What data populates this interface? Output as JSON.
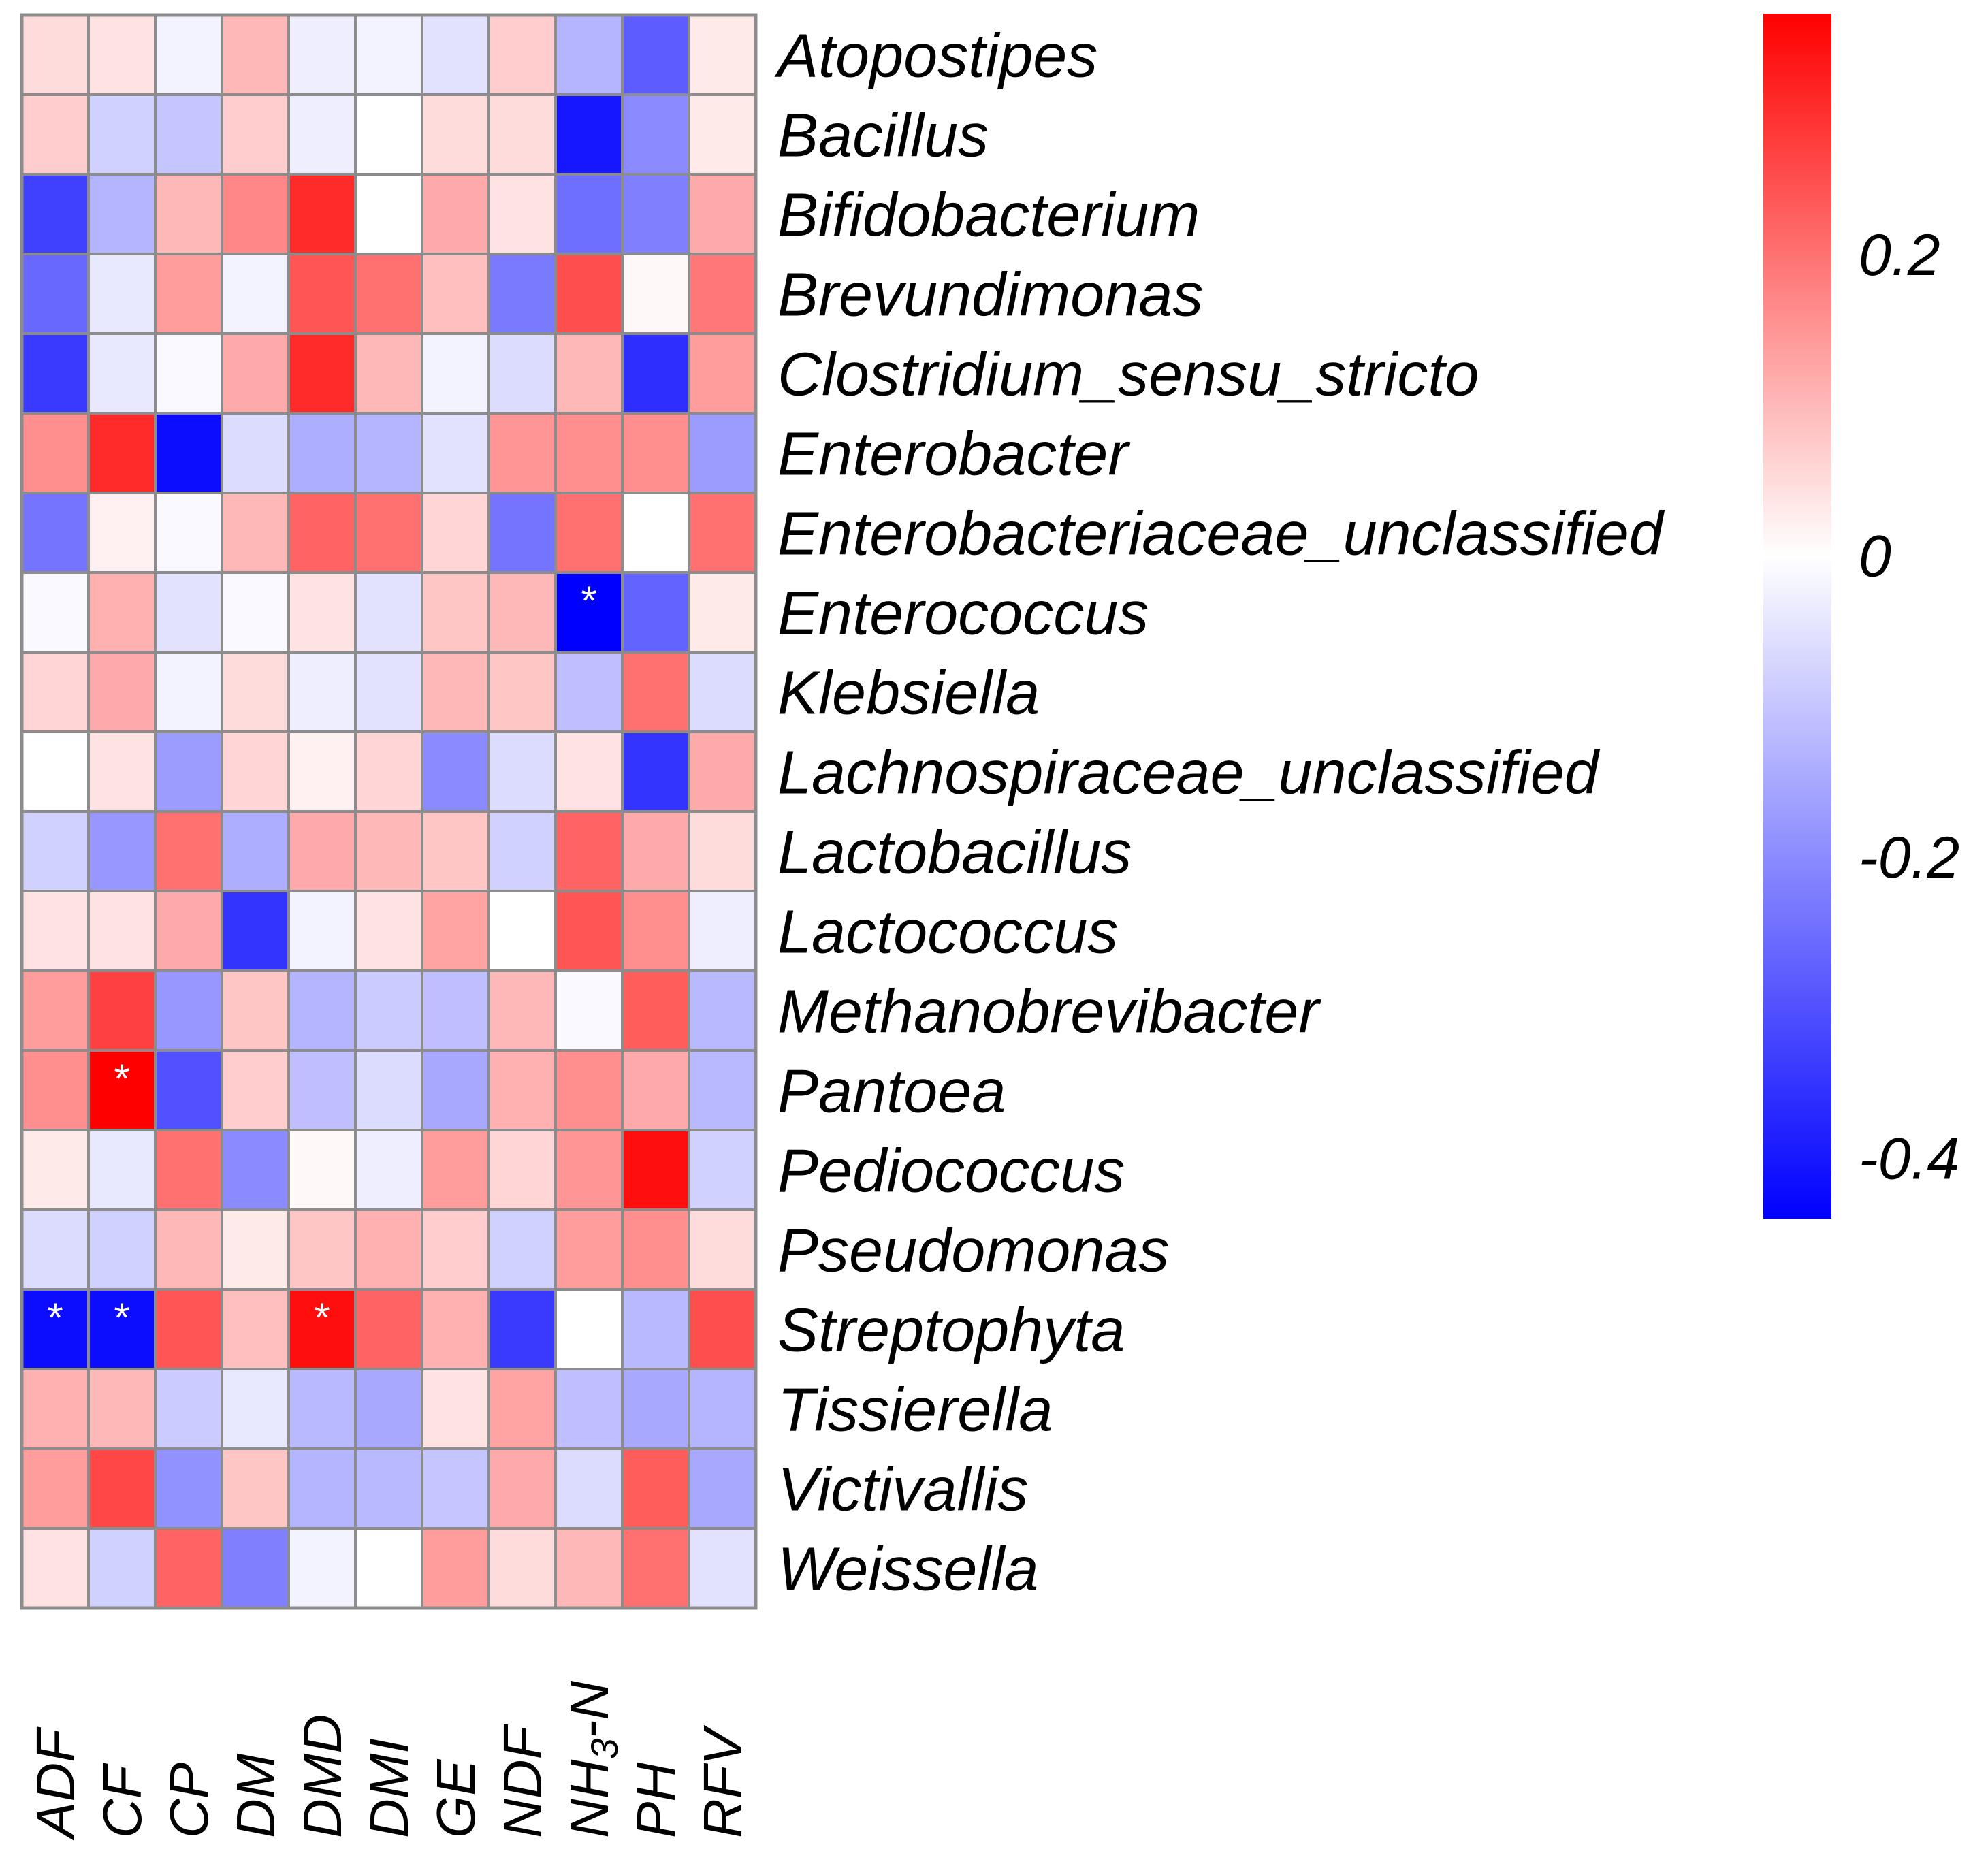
{
  "chart_data": {
    "type": "heatmap",
    "title": "",
    "rows": [
      "Atopostipes",
      "Bacillus",
      "Bifidobacterium",
      "Brevundimonas",
      "Clostridium_sensu_stricto",
      "Enterobacter",
      "Enterobacteriaceae_unclassified",
      "Enterococcus",
      "Klebsiella",
      "Lachnospiraceae_unclassified",
      "Lactobacillus",
      "Lactococcus",
      "Methanobrevibacter",
      "Pantoea",
      "Pediococcus",
      "Pseudomonas",
      "Streptophyta",
      "Tissierella",
      "Victivallis",
      "Weissella"
    ],
    "columns": [
      "ADF",
      "CF",
      "CP",
      "DM",
      "DMD",
      "DMI",
      "GE",
      "NDF",
      "NH3-N",
      "PH",
      "RFV"
    ],
    "column_label_parts": {
      "NH3-N": [
        "NH",
        "3",
        "-N"
      ]
    },
    "values": [
      [
        0.05,
        0.04,
        -0.02,
        0.1,
        -0.03,
        -0.02,
        -0.05,
        0.07,
        -0.13,
        -0.28,
        0.03
      ],
      [
        0.07,
        -0.08,
        -0.1,
        0.07,
        -0.03,
        0.0,
        0.05,
        0.05,
        -0.4,
        -0.2,
        0.03
      ],
      [
        -0.33,
        -0.13,
        0.1,
        0.17,
        0.3,
        0.0,
        0.12,
        0.04,
        -0.25,
        -0.22,
        0.12
      ],
      [
        -0.26,
        -0.04,
        0.14,
        -0.02,
        0.24,
        0.2,
        0.09,
        -0.23,
        0.25,
        0.01,
        0.19
      ],
      [
        -0.34,
        -0.04,
        -0.01,
        0.12,
        0.3,
        0.1,
        -0.02,
        -0.06,
        0.1,
        -0.36,
        0.14
      ],
      [
        0.16,
        0.3,
        -0.42,
        -0.06,
        -0.14,
        -0.13,
        -0.05,
        0.15,
        0.16,
        0.16,
        -0.17
      ],
      [
        -0.24,
        0.02,
        -0.01,
        0.1,
        0.22,
        0.2,
        0.06,
        -0.24,
        0.2,
        0.0,
        0.2
      ],
      [
        -0.01,
        0.11,
        -0.05,
        -0.01,
        0.04,
        -0.05,
        0.08,
        0.1,
        -0.44,
        -0.27,
        0.03
      ],
      [
        0.06,
        0.12,
        -0.02,
        0.05,
        -0.03,
        -0.05,
        0.1,
        0.08,
        -0.11,
        0.2,
        -0.06
      ],
      [
        0.0,
        0.04,
        -0.17,
        0.06,
        0.02,
        0.06,
        -0.2,
        -0.06,
        0.04,
        -0.35,
        0.12
      ],
      [
        -0.08,
        -0.18,
        0.2,
        -0.14,
        0.12,
        0.1,
        0.08,
        -0.08,
        0.22,
        0.12,
        0.05
      ],
      [
        0.04,
        0.04,
        0.12,
        -0.35,
        -0.02,
        0.04,
        0.13,
        0.0,
        0.24,
        0.16,
        -0.03
      ],
      [
        0.14,
        0.27,
        -0.18,
        0.08,
        -0.13,
        -0.09,
        -0.11,
        0.1,
        -0.01,
        0.23,
        -0.12
      ],
      [
        0.16,
        0.36,
        -0.3,
        0.07,
        -0.11,
        -0.06,
        -0.15,
        0.11,
        0.16,
        0.12,
        -0.12
      ],
      [
        0.03,
        -0.04,
        0.2,
        -0.2,
        0.01,
        -0.03,
        0.14,
        0.06,
        0.15,
        0.34,
        -0.08
      ],
      [
        -0.06,
        -0.08,
        0.1,
        0.03,
        0.08,
        0.11,
        0.07,
        -0.08,
        0.14,
        0.16,
        0.05
      ],
      [
        -0.42,
        -0.42,
        0.24,
        0.09,
        0.34,
        0.22,
        0.11,
        -0.34,
        0.0,
        -0.12,
        0.25
      ],
      [
        0.11,
        0.1,
        -0.09,
        -0.04,
        -0.12,
        -0.15,
        0.04,
        0.13,
        -0.11,
        -0.15,
        -0.13
      ],
      [
        0.14,
        0.26,
        -0.19,
        0.08,
        -0.13,
        -0.12,
        -0.1,
        0.12,
        -0.06,
        0.23,
        -0.15
      ],
      [
        0.04,
        -0.08,
        0.22,
        -0.22,
        -0.02,
        0.0,
        0.14,
        0.05,
        0.1,
        0.2,
        -0.05
      ]
    ],
    "significant": [
      [
        7,
        8
      ],
      [
        13,
        1
      ],
      [
        16,
        0
      ],
      [
        16,
        1
      ],
      [
        16,
        4
      ]
    ],
    "marker_symbol": "*",
    "colorbar": {
      "ticks": [
        0.2,
        0,
        -0.2,
        -0.4
      ],
      "tick_labels": [
        "0.2",
        "0",
        "-0.2",
        "-0.4"
      ],
      "vmin": -0.44,
      "vmax": 0.36,
      "colors": {
        "low": "#0000ff",
        "mid": "#ffffff",
        "high": "#ff0000"
      }
    },
    "grid_color": "#8c8c8c"
  }
}
